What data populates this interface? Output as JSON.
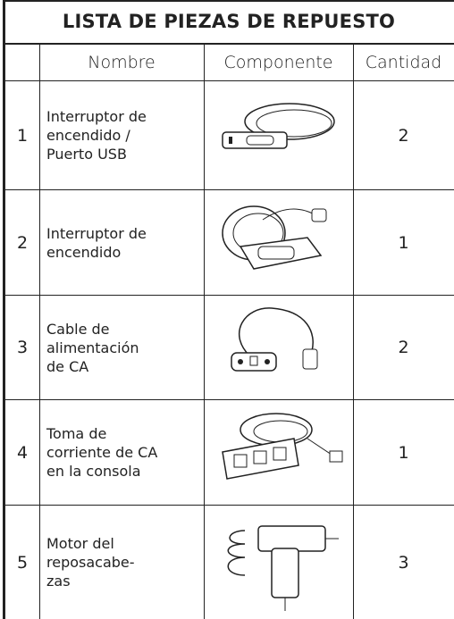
{
  "table": {
    "title": "LISTA DE PIEZAS DE REPUESTO",
    "header": [
      "Nombre",
      "Componente",
      "Cantidad"
    ],
    "rows": [
      {
        "number": 1,
        "name": [
          "Interruptor de",
          "encendido /",
          "Puerto USB"
        ],
        "quantity": 2
      },
      {
        "number": 2,
        "name": [
          "Interruptor de",
          "encendido"
        ],
        "quantity": 1
      },
      {
        "number": 3,
        "name": [
          "Cable de",
          "alimentación",
          "de CA"
        ],
        "quantity": 2
      },
      {
        "number": 4,
        "name": [
          "Toma de",
          "corriente de CA",
          "en la consola"
        ],
        "quantity": 1
      },
      {
        "number": 5,
        "name": [
          "Motor del",
          "reposacabe-",
          "zas"
        ],
        "quantity": 3
      }
    ]
  }
}
